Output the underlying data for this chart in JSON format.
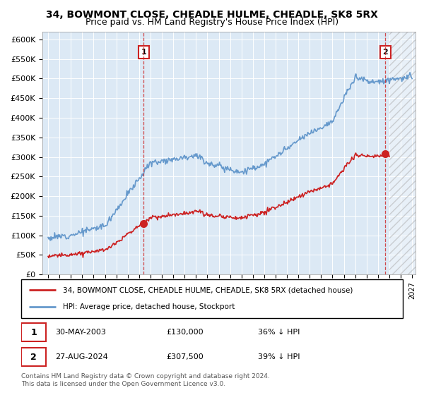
{
  "title1": "34, BOWMONT CLOSE, CHEADLE HULME, CHEADLE, SK8 5RX",
  "title2": "Price paid vs. HM Land Registry's House Price Index (HPI)",
  "ylim": [
    0,
    620000
  ],
  "yticks": [
    0,
    50000,
    100000,
    150000,
    200000,
    250000,
    300000,
    350000,
    400000,
    450000,
    500000,
    550000,
    600000
  ],
  "ytick_labels": [
    "£0",
    "£50K",
    "£100K",
    "£150K",
    "£200K",
    "£250K",
    "£300K",
    "£350K",
    "£400K",
    "£450K",
    "£500K",
    "£550K",
    "£600K"
  ],
  "plot_bg_color": "#dce9f5",
  "fig_bg_color": "#ffffff",
  "hpi_color": "#6699cc",
  "price_color": "#cc2222",
  "sale1_date": 2003.41,
  "sale1_price": 130000,
  "sale1_label": "1",
  "sale2_date": 2024.65,
  "sale2_price": 307500,
  "sale2_label": "2",
  "legend_line1": "34, BOWMONT CLOSE, CHEADLE HULME, CHEADLE, SK8 5RX (detached house)",
  "legend_line2": "HPI: Average price, detached house, Stockport",
  "footnote1": "Contains HM Land Registry data © Crown copyright and database right 2024.",
  "footnote2": "This data is licensed under the Open Government Licence v3.0.",
  "xmin": 1994.5,
  "xmax": 2027.3,
  "hatch_start": 2025.0
}
